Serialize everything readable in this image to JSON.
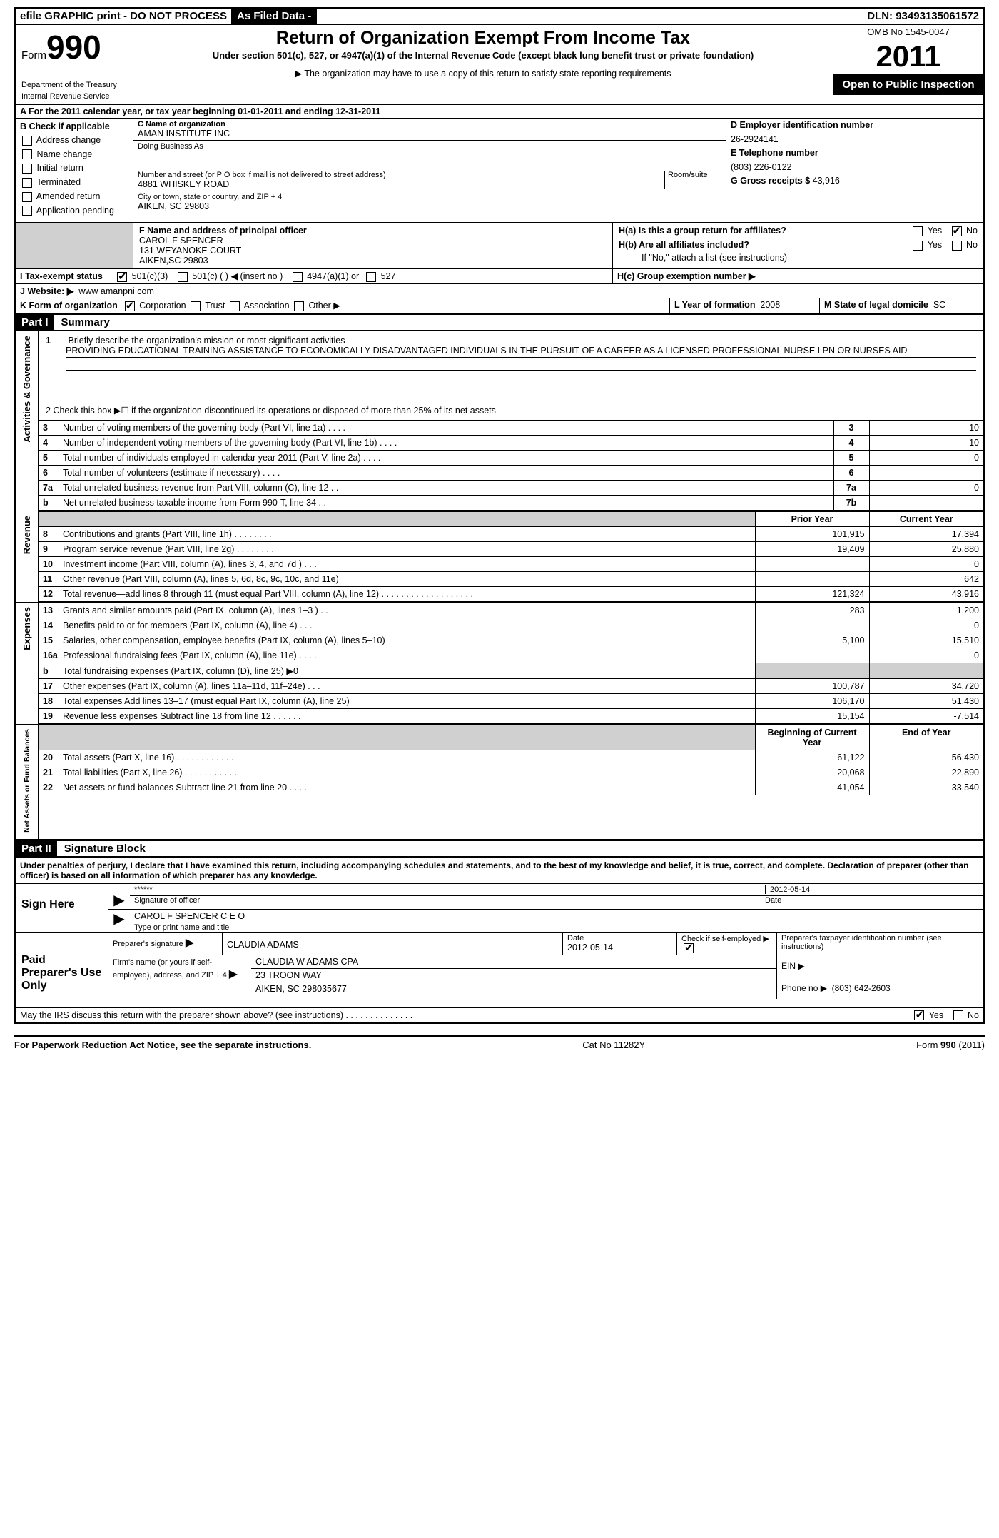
{
  "top": {
    "efile": "efile GRAPHIC print - DO NOT PROCESS",
    "as_filed": "As Filed Data -",
    "dln_label": "DLN:",
    "dln": "93493135061572"
  },
  "header": {
    "form_word": "Form",
    "form_no": "990",
    "dept1": "Department of the Treasury",
    "dept2": "Internal Revenue Service",
    "title": "Return of Organization Exempt From Income Tax",
    "subtitle": "Under section 501(c), 527, or 4947(a)(1) of the Internal Revenue Code (except black lung benefit trust or private foundation)",
    "note": "▶ The organization may have to use a copy of this return to satisfy state reporting requirements",
    "omb": "OMB No 1545-0047",
    "year": "2011",
    "open": "Open to Public Inspection"
  },
  "line_a": "A  For the 2011 calendar year, or tax year beginning 01-01-2011    and ending 12-31-2011",
  "section_b": {
    "title": "B  Check if applicable",
    "items": [
      "Address change",
      "Name change",
      "Initial return",
      "Terminated",
      "Amended return",
      "Application pending"
    ]
  },
  "section_c": {
    "name_label": "C Name of organization",
    "name": "AMAN INSTITUTE INC",
    "dba_label": "Doing Business As",
    "addr_label": "Number and street (or P O  box if mail is not delivered to street address)",
    "room_label": "Room/suite",
    "addr": "4881 WHISKEY ROAD",
    "city_label": "City or town, state or country, and ZIP + 4",
    "city": "AIKEN, SC  29803"
  },
  "section_d": {
    "ein_label": "D Employer identification number",
    "ein": "26-2924141",
    "tel_label": "E Telephone number",
    "tel": "(803) 226-0122",
    "gross_label": "G Gross receipts $",
    "gross": "43,916"
  },
  "section_f": {
    "label": "F  Name and address of principal officer",
    "name": "CAROL F SPENCER",
    "addr1": "131 WEYANOKE COURT",
    "addr2": "AIKEN,SC  29803"
  },
  "section_h": {
    "ha": "H(a)  Is this a group return for affiliates?",
    "hb": "H(b)  Are all affiliates included?",
    "hb_note": "If \"No,\" attach a list  (see instructions)",
    "hc": "H(c)   Group exemption number ▶"
  },
  "line_i": "I   Tax-exempt status",
  "line_i_opts": {
    "a": "501(c)(3)",
    "b": "501(c) (   ) ◀ (insert no )",
    "c": "4947(a)(1) or",
    "d": "527"
  },
  "line_j": {
    "label": "J  Website: ▶",
    "val": "www amanpni com"
  },
  "line_k": {
    "label": "K Form of organization",
    "opts": [
      "Corporation",
      "Trust",
      "Association",
      "Other ▶"
    ],
    "l_label": "L Year of formation",
    "l_val": "2008",
    "m_label": "M State of legal domicile",
    "m_val": "SC"
  },
  "part1": {
    "hdr": "Part I",
    "title": "Summary"
  },
  "summary": {
    "q1_label": "1",
    "q1": "Briefly describe the organization's mission or most significant activities",
    "mission": "PROVIDING EDUCATIONAL TRAINING ASSISTANCE TO ECONOMICALLY DISADVANTAGED INDIVIDUALS IN THE PURSUIT OF A CAREER AS A LICENSED PROFESSIONAL NURSE LPN OR NURSES AID",
    "q2": "2   Check this box ▶☐ if the organization discontinued its operations or disposed of more than 25% of its net assets",
    "vert_gov": "Activities & Governance",
    "vert_rev": "Revenue",
    "vert_exp": "Expenses",
    "vert_net": "Net Assets or Fund Balances",
    "rows_gov": [
      {
        "n": "3",
        "t": "Number of voting members of the governing body (Part VI, line 1a)   .   .   .   .",
        "box": "3",
        "v": "10"
      },
      {
        "n": "4",
        "t": "Number of independent voting members of the governing body (Part VI, line 1b)   .   .   .   .",
        "box": "4",
        "v": "10"
      },
      {
        "n": "5",
        "t": "Total number of individuals employed in calendar year 2011 (Part V, line 2a)   .   .   .   .",
        "box": "5",
        "v": "0"
      },
      {
        "n": "6",
        "t": "Total number of volunteers (estimate if necessary)   .   .   .   .",
        "box": "6",
        "v": ""
      },
      {
        "n": "7a",
        "t": "Total unrelated business revenue from Part VIII, column (C), line 12   .   .",
        "box": "7a",
        "v": "0"
      },
      {
        "n": "b",
        "t": "Net unrelated business taxable income from Form 990-T, line 34   .   .",
        "box": "7b",
        "v": ""
      }
    ],
    "hdr_prior": "Prior Year",
    "hdr_curr": "Current Year",
    "rows_rev": [
      {
        "n": "8",
        "t": "Contributions and grants (Part VIII, line 1h)   .   .   .   .   .   .   .   .",
        "p": "101,915",
        "c": "17,394"
      },
      {
        "n": "9",
        "t": "Program service revenue (Part VIII, line 2g)   .   .   .   .   .   .   .   .",
        "p": "19,409",
        "c": "25,880"
      },
      {
        "n": "10",
        "t": "Investment income (Part VIII, column (A), lines 3, 4, and 7d )   .   .   .",
        "p": "",
        "c": "0"
      },
      {
        "n": "11",
        "t": "Other revenue (Part VIII, column (A), lines 5, 6d, 8c, 9c, 10c, and 11e)",
        "p": "",
        "c": "642"
      },
      {
        "n": "12",
        "t": "Total revenue—add lines 8 through 11 (must equal Part VIII, column (A), line 12)  .   .   .   .   .   .   .   .   .   .   .   .   .   .   .   .   .   .   .",
        "p": "121,324",
        "c": "43,916"
      }
    ],
    "rows_exp": [
      {
        "n": "13",
        "t": "Grants and similar amounts paid (Part IX, column (A), lines 1–3 )   .   .",
        "p": "283",
        "c": "1,200"
      },
      {
        "n": "14",
        "t": "Benefits paid to or for members (Part IX, column (A), line 4)   .   .   .",
        "p": "",
        "c": "0"
      },
      {
        "n": "15",
        "t": "Salaries, other compensation, employee benefits (Part IX, column (A), lines 5–10)",
        "p": "5,100",
        "c": "15,510"
      },
      {
        "n": "16a",
        "t": "Professional fundraising fees (Part IX, column (A), line 11e)   .   .   .   .",
        "p": "",
        "c": "0"
      },
      {
        "n": "b",
        "t": "Total fundraising expenses (Part IX, column (D), line 25) ▶0",
        "p": "SHADE",
        "c": "SHADE"
      },
      {
        "n": "17",
        "t": "Other expenses (Part IX, column (A), lines 11a–11d, 11f–24e)   .   .   .",
        "p": "100,787",
        "c": "34,720"
      },
      {
        "n": "18",
        "t": "Total expenses  Add lines 13–17 (must equal Part IX, column (A), line 25)",
        "p": "106,170",
        "c": "51,430"
      },
      {
        "n": "19",
        "t": "Revenue less expenses  Subtract line 18 from line 12   .   .   .   .   .   .",
        "p": "15,154",
        "c": "-7,514"
      }
    ],
    "hdr_beg": "Beginning of Current Year",
    "hdr_end": "End of Year",
    "rows_net": [
      {
        "n": "20",
        "t": "Total assets (Part X, line 16)   .   .   .   .   .   .   .   .   .   .   .   .",
        "p": "61,122",
        "c": "56,430"
      },
      {
        "n": "21",
        "t": "Total liabilities (Part X, line 26)   .   .   .   .   .   .   .   .   .   .   .",
        "p": "20,068",
        "c": "22,890"
      },
      {
        "n": "22",
        "t": "Net assets or fund balances  Subtract line 21 from line 20   .   .   .   .",
        "p": "41,054",
        "c": "33,540"
      }
    ]
  },
  "part2": {
    "hdr": "Part II",
    "title": "Signature Block"
  },
  "perjury": "Under penalties of perjury, I declare that I have examined this return, including accompanying schedules and statements, and to the best of my knowledge and belief, it is true, correct, and complete. Declaration of preparer (other than officer) is based on all information of which preparer has any knowledge.",
  "sign": {
    "here": "Sign Here",
    "stars": "******",
    "sig_officer": "Signature of officer",
    "date": "2012-05-14",
    "date_label": "Date",
    "officer": "CAROL F SPENCER  C E O",
    "officer_label": "Type or print name and title",
    "paid": "Paid Preparer's Use Only",
    "prep_sig_label": "Preparer's signature",
    "prep_name": "CLAUDIA ADAMS",
    "prep_date": "2012-05-14",
    "self_emp": "Check if self-employed  ▶",
    "ptin_label": "Preparer's taxpayer identification number (see instructions)",
    "firm_label": "Firm's name (or yours if self-employed), address, and ZIP + 4",
    "firm_name": "CLAUDIA W ADAMS CPA",
    "firm_addr1": "23 TROON WAY",
    "firm_addr2": "AIKEN, SC  298035677",
    "ein_label": "EIN  ▶",
    "phone_label": "Phone no  ▶",
    "phone": "(803) 642-2603"
  },
  "discuss": "May the IRS discuss this return with the preparer shown above? (see instructions)   .   .   .   .   .   .   .   .   .   .   .   .   .   .",
  "footer": {
    "l": "For Paperwork Reduction Act Notice, see the separate instructions.",
    "m": "Cat No  11282Y",
    "r": "Form 990 (2011)"
  },
  "colors": {
    "black": "#000000",
    "white": "#ffffff",
    "shade": "#d0d0d0"
  }
}
